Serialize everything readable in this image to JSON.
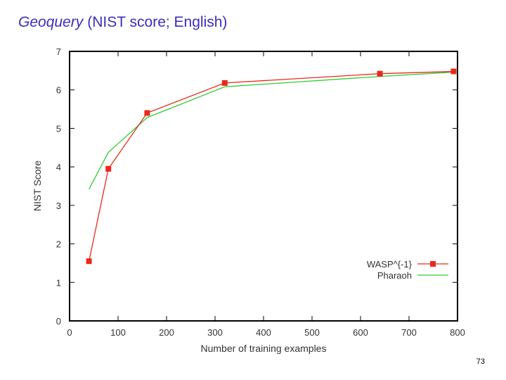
{
  "slide": {
    "title_emphasis": "Geoquery",
    "title_rest": "(NIST score; English)",
    "page_number": "73"
  },
  "chart_data": {
    "type": "line",
    "title": "",
    "xlabel": "Number of training examples",
    "ylabel": "NIST Score",
    "xlim": [
      0,
      800
    ],
    "ylim": [
      0,
      7
    ],
    "xticks": [
      0,
      100,
      200,
      300,
      400,
      500,
      600,
      700,
      800
    ],
    "yticks": [
      0,
      1,
      2,
      3,
      4,
      5,
      6,
      7
    ],
    "grid": false,
    "legend_position": "bottom-right",
    "series": [
      {
        "name": "WASP^{-1}",
        "color": "#e8291c",
        "marker": "square",
        "x": [
          40,
          80,
          160,
          320,
          640,
          792
        ],
        "y": [
          1.55,
          3.95,
          5.4,
          6.18,
          6.42,
          6.48
        ]
      },
      {
        "name": "Pharaoh",
        "color": "#33cc33",
        "marker": "none",
        "x": [
          40,
          80,
          160,
          320,
          640,
          792
        ],
        "y": [
          3.42,
          4.38,
          5.28,
          6.08,
          6.35,
          6.46
        ]
      }
    ]
  }
}
